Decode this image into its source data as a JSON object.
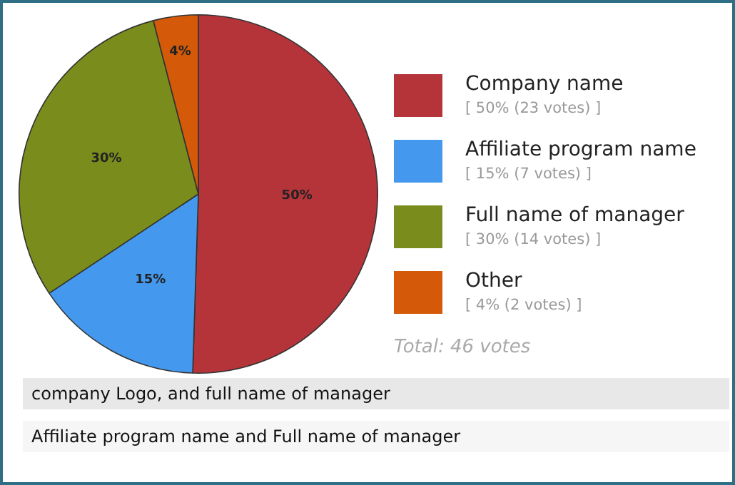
{
  "chart_data": {
    "type": "pie",
    "categories": [
      "Company name",
      "Affiliate program name",
      "Full name of manager",
      "Other"
    ],
    "values": [
      50,
      15,
      30,
      4
    ],
    "colors": [
      "#b5343a",
      "#4499ee",
      "#7a8c1c",
      "#d45a0a"
    ],
    "value_labels": [
      "50%",
      "15%",
      "30%",
      "4%"
    ],
    "legend": "right",
    "annotations": [
      "[ 50% (23 votes) ]",
      "[ 15% (7 votes) ]",
      "[ 30% (14 votes) ]",
      "[ 4% (2 votes) ]",
      "Total: 46 votes",
      "company Logo, and full name of manager",
      "Affiliate program name and Full name of manager"
    ]
  }
}
